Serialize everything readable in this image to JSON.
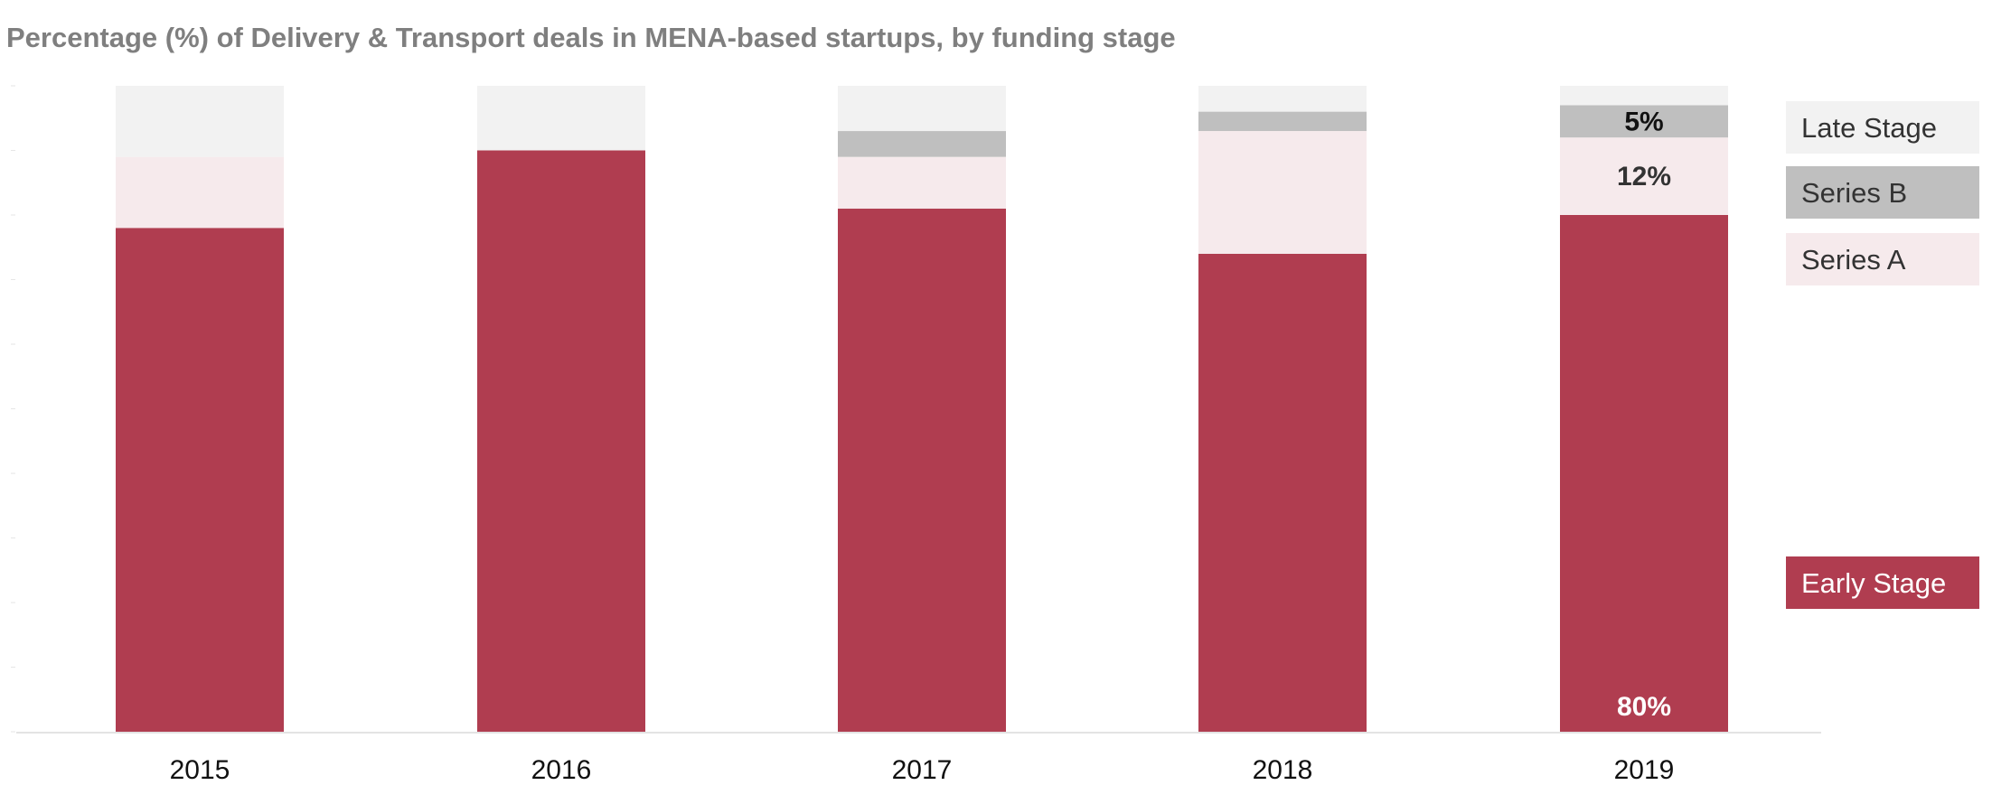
{
  "chart_data": {
    "type": "bar",
    "stacked": true,
    "title": "Percentage (%) of Delivery & Transport deals in MENA-based startups, by funding stage",
    "xlabel": "",
    "ylabel": "",
    "ylim": [
      0,
      100
    ],
    "grid": false,
    "legend_position": "right",
    "categories": [
      "2015",
      "2016",
      "2017",
      "2018",
      "2019"
    ],
    "series": [
      {
        "name": "Early Stage",
        "color": "#b03d50",
        "values": [
          78,
          90,
          81,
          74,
          80
        ]
      },
      {
        "name": "Series A",
        "color": "#f6eaec",
        "values": [
          11,
          0,
          8,
          19,
          12
        ]
      },
      {
        "name": "Series B",
        "color": "#bfbfbf",
        "values": [
          0,
          0,
          4,
          3,
          5
        ]
      },
      {
        "name": "Late Stage",
        "color": "#f2f2f2",
        "values": [
          11,
          10,
          7,
          4,
          3
        ]
      }
    ],
    "data_labels": [
      {
        "category": "2019",
        "series": "Early Stage",
        "text": "80%",
        "color": "#ffffff"
      },
      {
        "category": "2019",
        "series": "Series A",
        "text": "12%",
        "color": "#333333"
      },
      {
        "category": "2019",
        "series": "Series B",
        "text": "5%",
        "color": "#111111"
      }
    ],
    "legend_order": [
      "Late Stage",
      "Series B",
      "Series A",
      "Early Stage"
    ]
  }
}
